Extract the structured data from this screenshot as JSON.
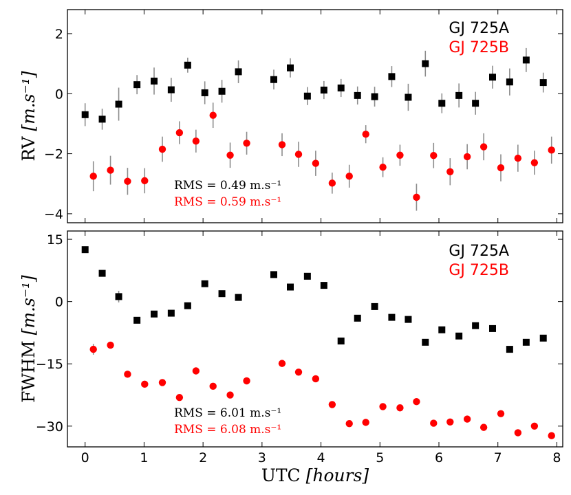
{
  "chart_data": [
    {
      "type": "scatter",
      "id": "rv",
      "ylabel": "RV",
      "ylabel_units": "[m.s⁻¹]",
      "xlim": [
        -0.3,
        8.1
      ],
      "ylim": [
        -4.3,
        2.8
      ],
      "yticks": [
        -4,
        -2,
        0,
        2
      ],
      "ytick_labels": [
        "−4",
        "−2",
        "0",
        "2"
      ],
      "legend": {
        "position": "top-right",
        "entries": [
          "GJ 725A",
          "GJ 725B"
        ]
      },
      "rms": [
        {
          "text": "RMS = 0.49 m.s⁻¹",
          "color": "#000000"
        },
        {
          "text": "RMS = 0.59 m.s⁻¹",
          "color": "#ff0000"
        }
      ],
      "series": [
        {
          "name": "GJ 725A",
          "color": "#000000",
          "marker": "square",
          "x": [
            0.0,
            0.29,
            0.57,
            0.88,
            1.17,
            1.46,
            1.74,
            2.03,
            2.32,
            2.6,
            3.2,
            3.48,
            3.77,
            4.05,
            4.34,
            4.62,
            4.91,
            5.2,
            5.48,
            5.77,
            6.05,
            6.34,
            6.62,
            6.91,
            7.2,
            7.48,
            7.77
          ],
          "values": [
            -0.7,
            -0.85,
            -0.35,
            0.3,
            0.42,
            0.13,
            0.95,
            0.03,
            0.08,
            0.73,
            0.47,
            0.86,
            -0.08,
            0.12,
            0.19,
            -0.06,
            -0.1,
            0.57,
            -0.12,
            1.0,
            -0.32,
            -0.06,
            -0.32,
            0.55,
            0.39,
            1.12,
            0.37
          ],
          "errors": [
            0.38,
            0.35,
            0.55,
            0.32,
            0.45,
            0.4,
            0.25,
            0.38,
            0.38,
            0.38,
            0.33,
            0.32,
            0.3,
            0.3,
            0.3,
            0.3,
            0.33,
            0.35,
            0.45,
            0.43,
            0.33,
            0.4,
            0.38,
            0.38,
            0.45,
            0.4,
            0.33
          ]
        },
        {
          "name": "GJ 725B",
          "color": "#ff0000",
          "marker": "circle",
          "x": [
            0.14,
            0.43,
            0.72,
            1.01,
            1.31,
            1.6,
            1.88,
            2.17,
            2.46,
            2.74,
            3.34,
            3.62,
            3.91,
            4.19,
            4.48,
            4.76,
            5.05,
            5.34,
            5.62,
            5.91,
            6.19,
            6.48,
            6.76,
            7.05,
            7.34,
            7.62,
            7.91
          ],
          "values": [
            -2.75,
            -2.55,
            -2.92,
            -2.9,
            -1.85,
            -1.3,
            -1.58,
            -0.72,
            -2.05,
            -1.65,
            -1.7,
            -2.02,
            -2.32,
            -2.98,
            -2.75,
            -1.35,
            -2.45,
            -2.05,
            -3.45,
            -2.06,
            -2.6,
            -2.1,
            -1.77,
            -2.47,
            -2.15,
            -2.3,
            -1.88
          ],
          "errors": [
            0.5,
            0.48,
            0.45,
            0.42,
            0.42,
            0.38,
            0.38,
            0.42,
            0.42,
            0.38,
            0.38,
            0.42,
            0.42,
            0.35,
            0.38,
            0.3,
            0.33,
            0.35,
            0.45,
            0.42,
            0.45,
            0.42,
            0.45,
            0.45,
            0.45,
            0.4,
            0.45
          ]
        }
      ]
    },
    {
      "type": "scatter",
      "id": "fwhm",
      "ylabel": "FWHM",
      "ylabel_units": "[m.s⁻¹]",
      "xlabel": "UTC",
      "xlabel_units": "[hours]",
      "xlim": [
        -0.3,
        8.1
      ],
      "ylim": [
        -35,
        17
      ],
      "xticks": [
        0,
        1,
        2,
        3,
        4,
        5,
        6,
        7,
        8
      ],
      "xtick_labels": [
        "0",
        "1",
        "2",
        "3",
        "4",
        "5",
        "6",
        "7",
        "8"
      ],
      "yticks": [
        -30,
        -15,
        0,
        15
      ],
      "ytick_labels": [
        "−30",
        "−15",
        "0",
        "15"
      ],
      "legend": {
        "position": "top-right",
        "entries": [
          "GJ 725A",
          "GJ 725B"
        ]
      },
      "rms": [
        {
          "text": "RMS = 6.01 m.s⁻¹",
          "color": "#000000"
        },
        {
          "text": "RMS = 6.08 m.s⁻¹",
          "color": "#ff0000"
        }
      ],
      "series": [
        {
          "name": "GJ 725A",
          "color": "#000000",
          "marker": "square",
          "x": [
            0.0,
            0.29,
            0.57,
            0.88,
            1.17,
            1.46,
            1.74,
            2.03,
            2.32,
            2.6,
            3.2,
            3.48,
            3.77,
            4.05,
            4.34,
            4.62,
            4.91,
            5.2,
            5.48,
            5.77,
            6.05,
            6.34,
            6.62,
            6.91,
            7.2,
            7.48,
            7.77
          ],
          "values": [
            12.5,
            6.8,
            1.2,
            -4.5,
            -3.0,
            -2.8,
            -1.0,
            4.3,
            1.9,
            1.0,
            6.5,
            3.5,
            6.1,
            3.9,
            -9.5,
            -4.0,
            -1.2,
            -3.8,
            -4.3,
            -9.8,
            -6.8,
            -8.3,
            -5.8,
            -6.5,
            -11.5,
            -9.8,
            -8.8
          ],
          "errors": [
            0.6,
            0.6,
            1.4,
            0.6,
            0.6,
            0.6,
            0.6,
            0.6,
            0.6,
            0.6,
            0.6,
            0.6,
            0.6,
            0.6,
            0.6,
            0.6,
            0.6,
            0.6,
            0.6,
            0.6,
            0.6,
            0.6,
            0.6,
            0.6,
            0.6,
            0.6,
            0.6
          ]
        },
        {
          "name": "GJ 725B",
          "color": "#ff0000",
          "marker": "circle",
          "x": [
            0.14,
            0.43,
            0.72,
            1.01,
            1.31,
            1.6,
            1.88,
            2.17,
            2.46,
            2.74,
            3.34,
            3.62,
            3.91,
            4.19,
            4.48,
            4.76,
            5.05,
            5.34,
            5.62,
            5.91,
            6.19,
            6.48,
            6.76,
            7.05,
            7.34,
            7.62,
            7.91
          ],
          "values": [
            -11.5,
            -10.5,
            -17.5,
            -19.9,
            -19.5,
            -23.1,
            -16.7,
            -20.4,
            -22.5,
            -19.1,
            -14.9,
            -17.0,
            -18.6,
            -24.8,
            -29.4,
            -29.1,
            -25.3,
            -25.6,
            -24.1,
            -29.3,
            -29.0,
            -28.3,
            -30.3,
            -27.0,
            -31.6,
            -30.0,
            -32.3
          ],
          "errors": [
            1.3,
            0.6,
            0.6,
            0.6,
            0.6,
            0.6,
            0.6,
            0.6,
            0.6,
            0.6,
            0.6,
            0.6,
            0.6,
            0.6,
            0.6,
            0.6,
            0.6,
            0.6,
            0.6,
            0.6,
            0.6,
            0.6,
            0.6,
            0.6,
            0.6,
            0.6,
            0.6
          ]
        }
      ]
    }
  ]
}
